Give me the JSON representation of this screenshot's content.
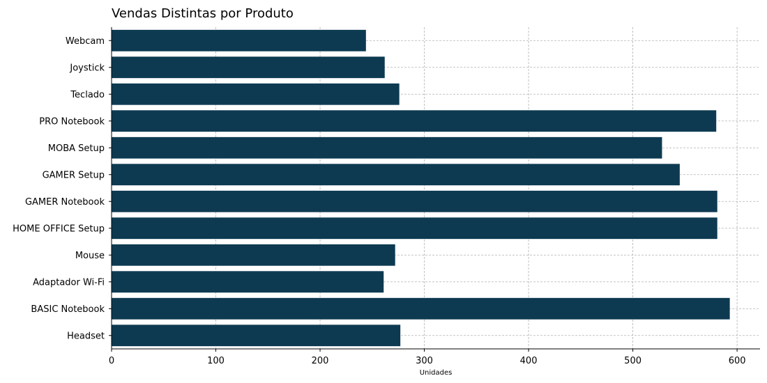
{
  "chart_data": {
    "type": "bar",
    "orientation": "horizontal",
    "title": "Vendas Distintas por Produto",
    "xlabel": "Unidades",
    "ylabel": "",
    "xlim": [
      0,
      622
    ],
    "xticks": [
      0,
      100,
      200,
      300,
      400,
      500,
      600
    ],
    "grid": true,
    "bar_color": "#0d3a51",
    "categories": [
      "Webcam",
      "Joystick",
      "Teclado",
      "PRO Notebook",
      "MOBA Setup",
      "GAMER Setup",
      "GAMER Notebook",
      "HOME OFFICE Setup",
      "Mouse",
      "Adaptador Wi-Fi",
      "BASIC Notebook",
      "Headset"
    ],
    "values": [
      244,
      262,
      276,
      580,
      528,
      545,
      581,
      581,
      272,
      261,
      593,
      277
    ]
  }
}
